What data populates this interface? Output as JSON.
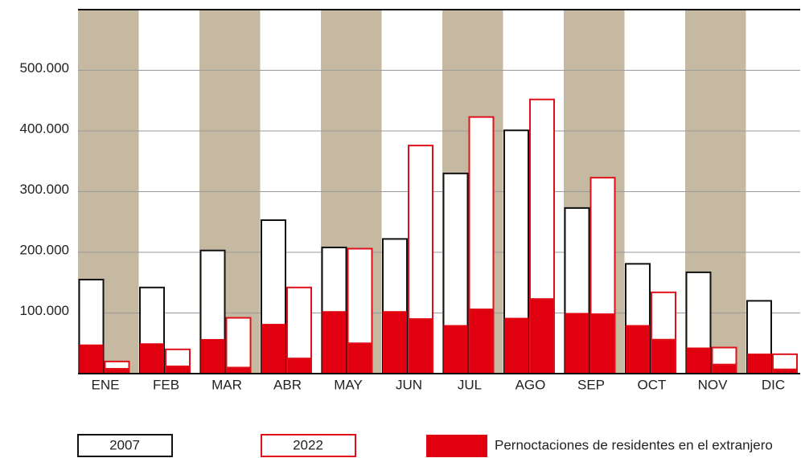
{
  "chart_data": {
    "type": "bar",
    "categories": [
      "ENE",
      "FEB",
      "MAR",
      "ABR",
      "MAY",
      "JUN",
      "JUL",
      "AGO",
      "SEP",
      "OCT",
      "NOV",
      "DIC"
    ],
    "series": [
      {
        "name": "2007",
        "color": "#111111",
        "values": [
          155000,
          142000,
          203000,
          253000,
          208000,
          222000,
          330000,
          401000,
          273000,
          181000,
          167000,
          120000
        ],
        "residents": [
          48000,
          50000,
          57000,
          82000,
          103000,
          103000,
          80000,
          92000,
          100000,
          80000,
          43000,
          33000
        ]
      },
      {
        "name": "2022",
        "color": "#e0101a",
        "values": [
          20000,
          40000,
          92000,
          142000,
          206000,
          376000,
          423000,
          452000,
          323000,
          134000,
          43000,
          32000
        ],
        "residents": [
          8000,
          12000,
          10000,
          25000,
          50000,
          90000,
          106000,
          123000,
          98000,
          56000,
          15000,
          7000
        ]
      }
    ],
    "residents_name": "Pernoctaciones de residentes en el extranjero",
    "residents_color": "#e00010",
    "band_color": "#c5baa1",
    "ylim": [
      0,
      600000
    ],
    "yticks": [
      {
        "value": 100000,
        "label": "100.000"
      },
      {
        "value": 200000,
        "label": "200.000"
      },
      {
        "value": 300000,
        "label": "300.000"
      },
      {
        "value": 400000,
        "label": "400.000"
      },
      {
        "value": 500000,
        "label": "500.000"
      }
    ],
    "grid": true
  }
}
